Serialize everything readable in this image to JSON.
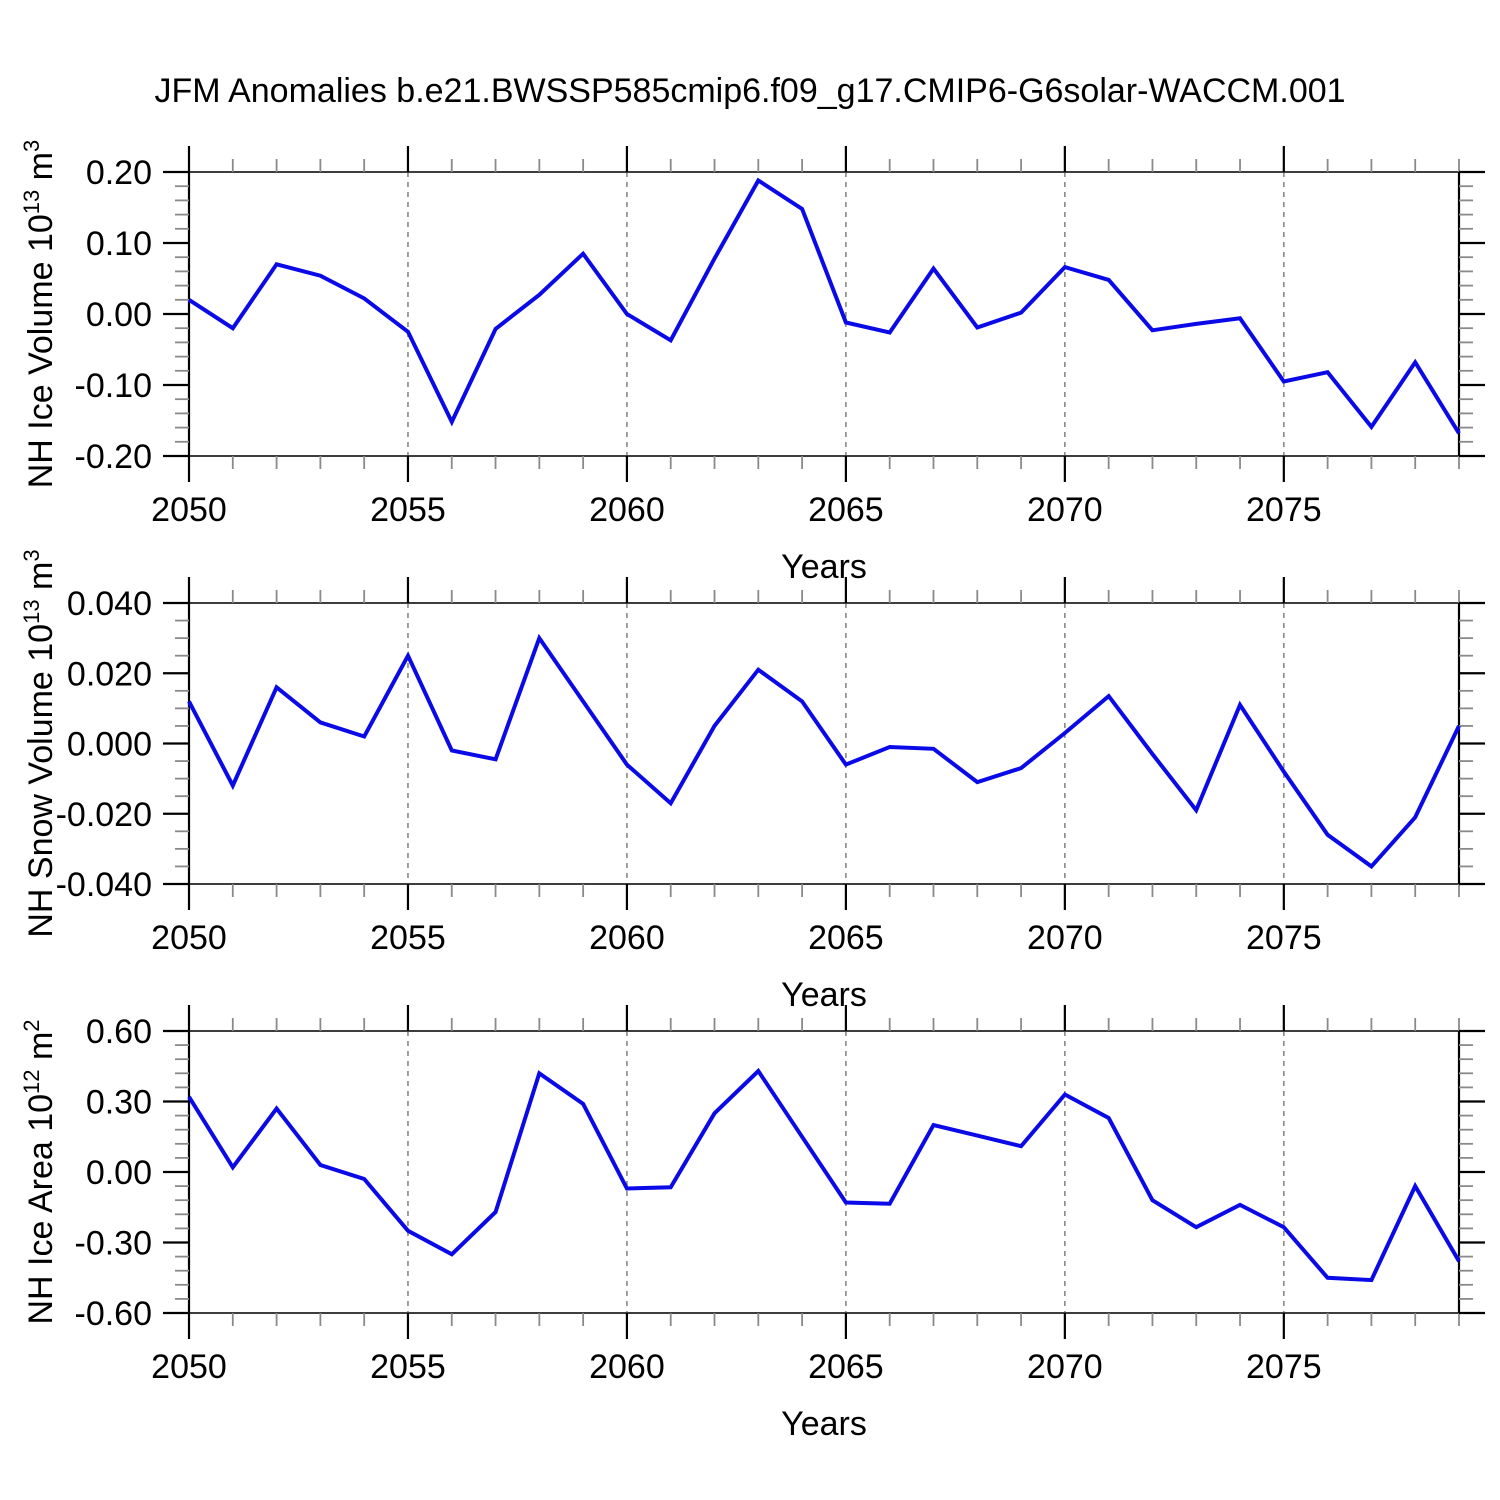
{
  "title": "JFM Anomalies b.e21.BWSSP585cmip6.f09_g17.CMIP6-G6solar-WACCM.001",
  "line_color": "#0a0ae8",
  "grid_color": "#808080",
  "chart_data": [
    {
      "type": "line",
      "series_name": "NH Ice Volume",
      "ylabel": "NH Ice Volume 10^13 m^3",
      "ylabel_parts": [
        {
          "text": "NH Ice Volume 10",
          "sup": false
        },
        {
          "text": "13",
          "sup": true
        },
        {
          "text": " m",
          "sup": false
        },
        {
          "text": "3",
          "sup": true
        }
      ],
      "xlabel": "Years",
      "x_range": [
        2050,
        2079
      ],
      "x": [
        2050,
        2051,
        2052,
        2053,
        2054,
        2055,
        2056,
        2057,
        2058,
        2059,
        2060,
        2061,
        2062,
        2063,
        2064,
        2065,
        2066,
        2067,
        2068,
        2069,
        2070,
        2071,
        2072,
        2073,
        2074,
        2075,
        2076,
        2077,
        2078,
        2079
      ],
      "values": [
        0.02,
        -0.02,
        0.07,
        0.054,
        0.022,
        -0.025,
        -0.152,
        -0.021,
        0.027,
        0.085,
        0.0,
        -0.037,
        0.078,
        0.188,
        0.148,
        -0.012,
        -0.026,
        0.064,
        -0.019,
        0.002,
        0.066,
        0.048,
        -0.023,
        -0.014,
        -0.006,
        -0.095,
        -0.082,
        -0.159,
        -0.068,
        -0.168
      ],
      "ylim": [
        -0.2,
        0.2
      ],
      "ytick_major": 0.1,
      "ytick_minor": 0.02,
      "ytick_decimals": 2,
      "ytick_labels": [
        "0.20",
        "0.10",
        "0.00",
        "-0.10",
        "-0.20"
      ],
      "xtick_major_labels": [
        "2050",
        "2055",
        "2060",
        "2065",
        "2070",
        "2075"
      ],
      "gridlines_x": [
        2055,
        2060,
        2065,
        2070,
        2075
      ],
      "grid": "vertical-dashed",
      "legend": "none"
    },
    {
      "type": "line",
      "series_name": "NH Snow Volume",
      "ylabel": "NH Snow Volume 10^13 m^3",
      "ylabel_parts": [
        {
          "text": "NH Snow Volume 10",
          "sup": false
        },
        {
          "text": "13",
          "sup": true
        },
        {
          "text": " m",
          "sup": false
        },
        {
          "text": "3",
          "sup": true
        }
      ],
      "xlabel": "Years",
      "x_range": [
        2050,
        2079
      ],
      "x": [
        2050,
        2051,
        2052,
        2053,
        2054,
        2055,
        2056,
        2057,
        2058,
        2059,
        2060,
        2061,
        2062,
        2063,
        2064,
        2065,
        2066,
        2067,
        2068,
        2069,
        2070,
        2071,
        2072,
        2073,
        2074,
        2075,
        2076,
        2077,
        2078,
        2079
      ],
      "values": [
        0.012,
        -0.012,
        0.016,
        0.006,
        0.002,
        0.025,
        -0.002,
        -0.0045,
        0.03,
        0.012,
        -0.006,
        -0.017,
        0.005,
        0.021,
        0.012,
        -0.006,
        -0.001,
        -0.0015,
        -0.011,
        -0.007,
        0.003,
        0.0135,
        -0.003,
        -0.019,
        0.011,
        -0.008,
        -0.026,
        -0.035,
        -0.021,
        0.005
      ],
      "ylim": [
        -0.04,
        0.04
      ],
      "ytick_major": 0.02,
      "ytick_minor": 0.005,
      "ytick_decimals": 3,
      "ytick_labels": [
        "0.040",
        "0.020",
        "0.000",
        "-0.020",
        "-0.040"
      ],
      "xtick_major_labels": [
        "2050",
        "2055",
        "2060",
        "2065",
        "2070",
        "2075"
      ],
      "gridlines_x": [
        2055,
        2060,
        2065,
        2070,
        2075
      ],
      "grid": "vertical-dashed",
      "legend": "none"
    },
    {
      "type": "line",
      "series_name": "NH Ice Area",
      "ylabel": "NH Ice Area 10^12 m^2",
      "ylabel_parts": [
        {
          "text": "NH Ice Area 10",
          "sup": false
        },
        {
          "text": "12",
          "sup": true
        },
        {
          "text": " m",
          "sup": false
        },
        {
          "text": "2",
          "sup": true
        }
      ],
      "xlabel": "Years",
      "x_range": [
        2050,
        2079
      ],
      "x": [
        2050,
        2051,
        2052,
        2053,
        2054,
        2055,
        2056,
        2057,
        2058,
        2059,
        2060,
        2061,
        2062,
        2063,
        2064,
        2065,
        2066,
        2067,
        2068,
        2069,
        2070,
        2071,
        2072,
        2073,
        2074,
        2075,
        2076,
        2077,
        2078,
        2079
      ],
      "values": [
        0.32,
        0.02,
        0.27,
        0.03,
        -0.03,
        -0.25,
        -0.35,
        -0.17,
        0.42,
        0.29,
        -0.07,
        -0.065,
        0.25,
        0.43,
        0.15,
        -0.13,
        -0.135,
        0.2,
        0.155,
        0.11,
        0.33,
        0.23,
        -0.12,
        -0.235,
        -0.14,
        -0.235,
        -0.45,
        -0.46,
        -0.06,
        -0.38
      ],
      "ylim": [
        -0.6,
        0.6
      ],
      "ytick_major": 0.3,
      "ytick_minor": 0.06,
      "ytick_decimals": 2,
      "ytick_labels": [
        "0.60",
        "0.30",
        "0.00",
        "-0.30",
        "-0.60"
      ],
      "xtick_major_labels": [
        "2050",
        "2055",
        "2060",
        "2065",
        "2070",
        "2075"
      ],
      "gridlines_x": [
        2055,
        2060,
        2065,
        2070,
        2075
      ],
      "grid": "vertical-dashed",
      "legend": "none"
    }
  ]
}
